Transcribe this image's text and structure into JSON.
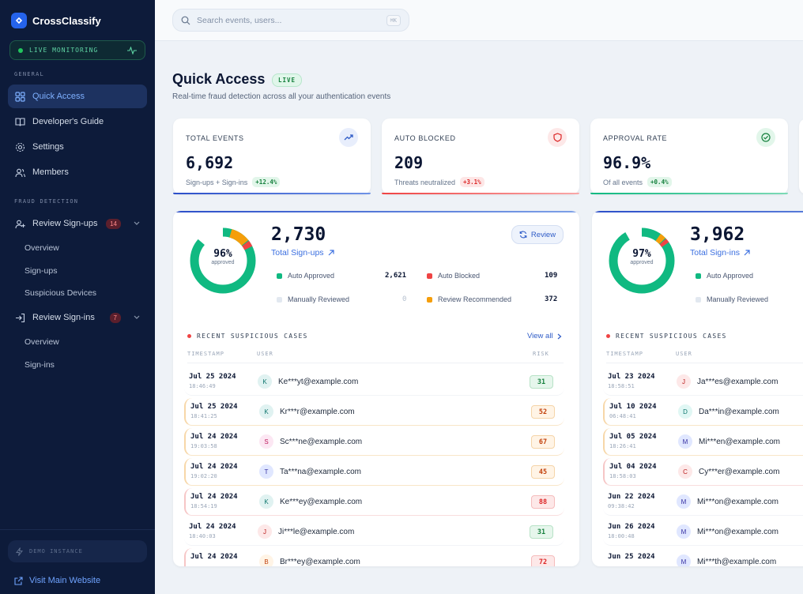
{
  "sidebar": {
    "brand": "CrossClassify",
    "live_label": "LIVE MONITORING",
    "section_general": "GENERAL",
    "section_fraud": "FRAUD DETECTION",
    "nav": {
      "quick_access": "Quick Access",
      "dev_guide": "Developer's Guide",
      "settings": "Settings",
      "members": "Members",
      "review_signups": "Review Sign-ups",
      "review_signups_count": "14",
      "review_signins": "Review Sign-ins",
      "review_signins_count": "7"
    },
    "signups_sub": [
      "Overview",
      "Sign-ups",
      "Suspicious Devices"
    ],
    "signins_sub": [
      "Overview",
      "Sign-ins"
    ],
    "demo_label": "DEMO INSTANCE",
    "visit_label": "Visit Main Website"
  },
  "topbar": {
    "search_placeholder": "Search events, users...",
    "shortcut": "⌘K"
  },
  "header": {
    "title": "Quick Access",
    "live_badge": "LIVE",
    "subtitle": "Real-time fraud detection across all your authentication events"
  },
  "stats": [
    {
      "title": "TOTAL EVENTS",
      "value": "6,692",
      "sub": "Sign-ups + Sign-ins",
      "change": "+12.4%",
      "tone": "green",
      "icon": "trending-up-icon"
    },
    {
      "title": "AUTO BLOCKED",
      "value": "209",
      "sub": "Threats neutralized",
      "change": "+3.1%",
      "tone": "red",
      "icon": "shield-icon"
    },
    {
      "title": "APPROVAL RATE",
      "value": "96.9%",
      "sub": "Of all events",
      "change": "+0.4%",
      "tone": "green",
      "icon": "check-circle-icon"
    }
  ],
  "signups_panel": {
    "total": "2,730",
    "total_label": "Total Sign-ups",
    "approved_pct": "96%",
    "approved_label": "approved",
    "review_button": "Review",
    "legend": [
      {
        "label": "Auto Approved",
        "value": "2,621",
        "color": "#10b981"
      },
      {
        "label": "Auto Blocked",
        "value": "109",
        "color": "#ef4444"
      },
      {
        "label": "Manually Reviewed",
        "value": "0",
        "color": "#e2e8f0"
      },
      {
        "label": "Review Recommended",
        "value": "372",
        "color": "#f59e0b"
      }
    ],
    "cases_title": "RECENT SUSPICIOUS CASES",
    "view_all": "View all",
    "col_timestamp": "TIMESTAMP",
    "col_user": "USER",
    "col_risk": "RISK",
    "rows": [
      {
        "date": "Jul 25 2024",
        "time": "18:46:49",
        "initial": "K",
        "email": "Ke***yt@example.com",
        "risk": "31",
        "tone": "green"
      },
      {
        "date": "Jul 25 2024",
        "time": "18:41:25",
        "initial": "K",
        "email": "Kr***r@example.com",
        "risk": "52",
        "tone": "amber"
      },
      {
        "date": "Jul 24 2024",
        "time": "19:03:58",
        "initial": "S",
        "email": "Sc***ne@example.com",
        "risk": "67",
        "tone": "amber"
      },
      {
        "date": "Jul 24 2024",
        "time": "19:02:20",
        "initial": "T",
        "email": "Ta***na@example.com",
        "risk": "45",
        "tone": "amber"
      },
      {
        "date": "Jul 24 2024",
        "time": "18:54:19",
        "initial": "K",
        "email": "Ke***ey@example.com",
        "risk": "88",
        "tone": "red"
      },
      {
        "date": "Jul 24 2024",
        "time": "18:40:03",
        "initial": "J",
        "email": "Ji***le@example.com",
        "risk": "31",
        "tone": "green"
      },
      {
        "date": "Jul 24 2024",
        "time": "",
        "initial": "B",
        "email": "Br***ey@example.com",
        "risk": "72",
        "tone": "red"
      }
    ]
  },
  "signins_panel": {
    "total": "3,962",
    "total_label": "Total Sign-ins",
    "approved_pct": "97%",
    "approved_label": "approved",
    "legend": [
      {
        "label": "Auto Approved",
        "color": "#10b981"
      },
      {
        "label": "Manually Reviewed",
        "color": "#e2e8f0"
      }
    ],
    "cases_title": "RECENT SUSPICIOUS CASES",
    "col_timestamp": "TIMESTAMP",
    "col_user": "USER",
    "rows": [
      {
        "date": "Jul 23 2024",
        "time": "18:58:51",
        "initial": "J",
        "email": "Ja***es@example.com",
        "tone": "none"
      },
      {
        "date": "Jul 10 2024",
        "time": "06:48:41",
        "initial": "D",
        "email": "Da***in@example.com",
        "tone": "amber"
      },
      {
        "date": "Jul 05 2024",
        "time": "18:26:41",
        "initial": "M",
        "email": "Mi***en@example.com",
        "tone": "amber"
      },
      {
        "date": "Jul 04 2024",
        "time": "18:58:03",
        "initial": "C",
        "email": "Cy***er@example.com",
        "tone": "red"
      },
      {
        "date": "Jun 22 2024",
        "time": "09:38:42",
        "initial": "M",
        "email": "Mi***on@example.com",
        "tone": "none"
      },
      {
        "date": "Jun 26 2024",
        "time": "18:00:48",
        "initial": "M",
        "email": "Mi***on@example.com",
        "tone": "none"
      },
      {
        "date": "Jun 25 2024",
        "time": "",
        "initial": "M",
        "email": "Mi***th@example.com",
        "tone": "none"
      }
    ]
  },
  "colors": {
    "sidebar_bg": "#0d1b3a",
    "accent": "#2563eb",
    "approved": "#10b981",
    "blocked": "#ef4444",
    "recommended": "#f59e0b"
  }
}
